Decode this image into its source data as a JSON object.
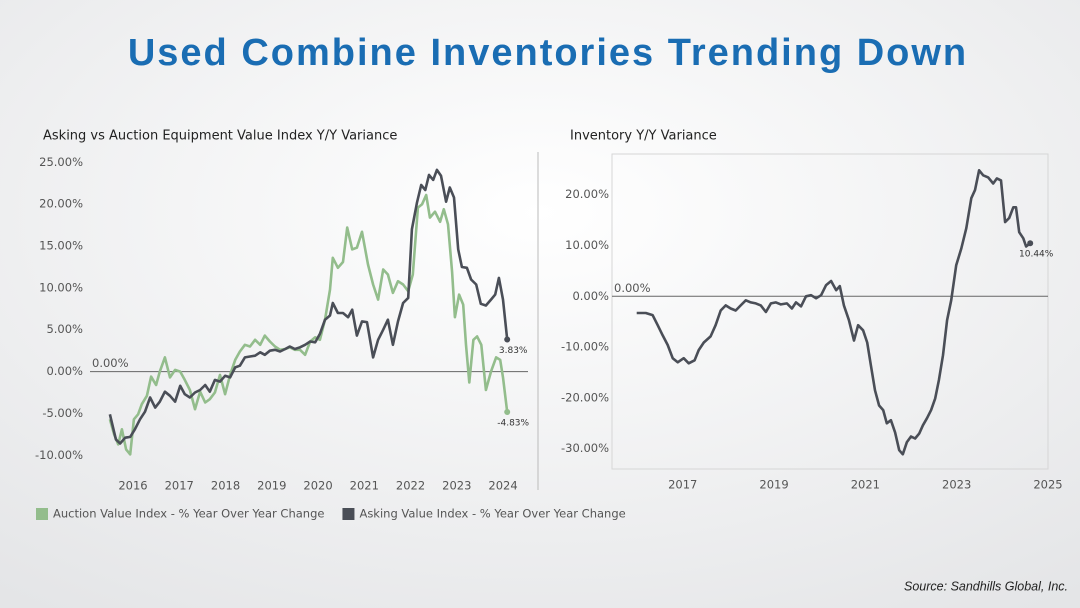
{
  "title": "Used Combine Inventories Trending Down",
  "source": "Source: Sandhills Global, Inc.",
  "chart_data": [
    {
      "type": "line",
      "title": "Asking vs Auction Equipment Value Index Y/Y Variance",
      "xlim": [
        2015.07,
        2024.54
      ],
      "xticks": [
        2016,
        2017,
        2018,
        2019,
        2020,
        2021,
        2022,
        2023,
        2024
      ],
      "ylim": [
        -12,
        26
      ],
      "yticks": [
        {
          "value": -10,
          "label": "-10.00%"
        },
        {
          "value": -5,
          "label": "-5.00%"
        },
        {
          "value": 0,
          "label": "0.00%"
        },
        {
          "value": 5,
          "label": "5.00%"
        },
        {
          "value": 10,
          "label": "10.00%"
        },
        {
          "value": 15,
          "label": "15.00%"
        },
        {
          "value": 20,
          "label": "20.00%"
        },
        {
          "value": 25,
          "label": "25.00%"
        }
      ],
      "hlines": [
        {
          "value": 0,
          "label": "0.00%"
        }
      ],
      "grid": false,
      "legend": "bottom",
      "series": [
        {
          "name": "Auction Value Index - % Year Over Year Change",
          "color": "#93bd8c",
          "x": [
            2015.5,
            2015.59,
            2015.68,
            2015.76,
            2015.85,
            2015.94,
            2016.02,
            2016.11,
            2016.19,
            2016.3,
            2016.39,
            2016.5,
            2016.58,
            2016.69,
            2016.8,
            2016.91,
            2017.02,
            2017.12,
            2017.23,
            2017.34,
            2017.45,
            2017.56,
            2017.66,
            2017.77,
            2017.88,
            2017.99,
            2018.1,
            2018.21,
            2018.31,
            2018.42,
            2018.53,
            2018.64,
            2018.75,
            2018.85,
            2018.96,
            2019.07,
            2019.18,
            2019.29,
            2019.39,
            2019.5,
            2019.61,
            2019.72,
            2019.83,
            2019.94,
            2020.04,
            2020.15,
            2020.26,
            2020.32,
            2020.43,
            2020.54,
            2020.63,
            2020.74,
            2020.84,
            2020.95,
            2021.08,
            2021.19,
            2021.3,
            2021.41,
            2021.51,
            2021.62,
            2021.73,
            2021.84,
            2021.95,
            2022.05,
            2022.16,
            2022.25,
            2022.34,
            2022.42,
            2022.53,
            2022.64,
            2022.72,
            2022.81,
            2022.9,
            2022.96,
            2023.05,
            2023.14,
            2023.2,
            2023.27,
            2023.36,
            2023.44,
            2023.53,
            2023.63,
            2023.74,
            2023.85,
            2023.94,
            2024.0,
            2024.09
          ],
          "values": [
            -5.7,
            -7.5,
            -8.7,
            -6.9,
            -9.3,
            -9.9,
            -5.7,
            -5.1,
            -3.9,
            -2.9,
            -0.6,
            -1.6,
            0,
            1.7,
            -0.7,
            0.2,
            0,
            -1.0,
            -2.2,
            -4.5,
            -2.4,
            -3.7,
            -3.3,
            -2.5,
            -0.4,
            -2.7,
            -0.4,
            1.4,
            2.4,
            3.2,
            3.0,
            3.8,
            3.2,
            4.3,
            3.6,
            3.0,
            2.6,
            2.7,
            2.9,
            2.6,
            2.6,
            2.0,
            3.6,
            4.1,
            3.8,
            6.2,
            9.8,
            13.6,
            12.4,
            13.1,
            17.2,
            14.6,
            14.8,
            16.7,
            12.8,
            10.4,
            8.6,
            12.2,
            11.6,
            9.4,
            10.8,
            10.4,
            9.6,
            11.6,
            19.6,
            20.0,
            21.1,
            18.4,
            19.1,
            17.9,
            19.4,
            17.6,
            11.9,
            6.5,
            9.2,
            8.0,
            3.2,
            -1.3,
            3.8,
            4.2,
            3.2,
            -2.2,
            0,
            1.7,
            1.4,
            -0.7,
            -4.83
          ],
          "value_labels": [
            null,
            null,
            null,
            null,
            null,
            null,
            null,
            null,
            null,
            null,
            null,
            null,
            null,
            null,
            null,
            null,
            null,
            null,
            null,
            null,
            null,
            null,
            null,
            null,
            null,
            null,
            null,
            null,
            null,
            null,
            null,
            null,
            null,
            null,
            null,
            null,
            null,
            null,
            null,
            null,
            null,
            null,
            null,
            null,
            null,
            null,
            null,
            null,
            null,
            null,
            null,
            null,
            null,
            null,
            null,
            null,
            null,
            null,
            null,
            null,
            null,
            null,
            null,
            null,
            null,
            null,
            null,
            null,
            null,
            null,
            null,
            null,
            null,
            null,
            null,
            null,
            null,
            null,
            null,
            null,
            null,
            null,
            null,
            null,
            null,
            null,
            "-4.83%"
          ]
        },
        {
          "name": "Asking Value Index - % Year Over Year Change",
          "color": "#4a4e57",
          "x": [
            2015.5,
            2015.63,
            2015.72,
            2015.83,
            2015.94,
            2016.04,
            2016.15,
            2016.26,
            2016.37,
            2016.48,
            2016.58,
            2016.69,
            2016.8,
            2016.91,
            2017.02,
            2017.12,
            2017.23,
            2017.34,
            2017.45,
            2017.56,
            2017.66,
            2017.77,
            2017.88,
            2017.99,
            2018.1,
            2018.21,
            2018.31,
            2018.42,
            2018.53,
            2018.64,
            2018.75,
            2018.85,
            2018.96,
            2019.07,
            2019.18,
            2019.29,
            2019.39,
            2019.5,
            2019.61,
            2019.72,
            2019.83,
            2019.94,
            2020.04,
            2020.15,
            2020.26,
            2020.32,
            2020.43,
            2020.54,
            2020.65,
            2020.74,
            2020.84,
            2020.95,
            2021.06,
            2021.19,
            2021.3,
            2021.41,
            2021.51,
            2021.62,
            2021.73,
            2021.84,
            2021.95,
            2022.03,
            2022.14,
            2022.23,
            2022.32,
            2022.4,
            2022.49,
            2022.57,
            2022.66,
            2022.77,
            2022.85,
            2022.94,
            2023.03,
            2023.11,
            2023.22,
            2023.31,
            2023.42,
            2023.52,
            2023.63,
            2023.74,
            2023.83,
            2023.91,
            2024.0,
            2024.09
          ],
          "values": [
            -5.1,
            -8.1,
            -8.6,
            -7.9,
            -7.8,
            -6.9,
            -5.7,
            -4.8,
            -3.1,
            -4.3,
            -3.6,
            -2.4,
            -2.9,
            -3.6,
            -1.7,
            -2.7,
            -3.1,
            -2.5,
            -2.2,
            -1.6,
            -2.4,
            -1.0,
            -1.2,
            -0.5,
            -0.7,
            0.5,
            0.7,
            1.7,
            1.8,
            1.9,
            2.3,
            2.0,
            2.5,
            2.6,
            2.4,
            2.7,
            3.0,
            2.7,
            2.9,
            3.2,
            3.6,
            3.5,
            4.5,
            6.2,
            6.7,
            8.2,
            7.0,
            7.0,
            6.5,
            7.4,
            4.3,
            6.0,
            5.9,
            1.7,
            3.8,
            5.0,
            6.2,
            3.2,
            6.0,
            8.2,
            8.8,
            17.0,
            20.2,
            22.3,
            21.7,
            23.5,
            22.9,
            24.1,
            23.4,
            20.3,
            22.0,
            20.8,
            14.6,
            12.5,
            12.4,
            11.0,
            10.4,
            8.1,
            7.9,
            8.6,
            9.2,
            11.2,
            8.6,
            3.83
          ],
          "value_labels": [
            null,
            null,
            null,
            null,
            null,
            null,
            null,
            null,
            null,
            null,
            null,
            null,
            null,
            null,
            null,
            null,
            null,
            null,
            null,
            null,
            null,
            null,
            null,
            null,
            null,
            null,
            null,
            null,
            null,
            null,
            null,
            null,
            null,
            null,
            null,
            null,
            null,
            null,
            null,
            null,
            null,
            null,
            null,
            null,
            null,
            null,
            null,
            null,
            null,
            null,
            null,
            null,
            null,
            null,
            null,
            null,
            null,
            null,
            null,
            null,
            null,
            null,
            null,
            null,
            null,
            null,
            null,
            null,
            null,
            null,
            null,
            null,
            null,
            null,
            null,
            null,
            null,
            null,
            null,
            null,
            null,
            null,
            null,
            "3.83%"
          ]
        }
      ]
    },
    {
      "type": "line",
      "title": "Inventory Y/Y Variance",
      "xlim": [
        2015.45,
        2025
      ],
      "xticks": [
        2017,
        2019,
        2021,
        2023,
        2025
      ],
      "ylim": [
        -34,
        28
      ],
      "yticks": [
        {
          "value": -30,
          "label": "-30.00%"
        },
        {
          "value": -20,
          "label": "-20.00%"
        },
        {
          "value": -10,
          "label": "-10.00%"
        },
        {
          "value": 0,
          "label": "0.00%"
        },
        {
          "value": 10,
          "label": "10.00%"
        },
        {
          "value": 20,
          "label": "20.00%"
        }
      ],
      "hlines": [
        {
          "value": 0,
          "label": "0.00%"
        }
      ],
      "grid": false,
      "frame": true,
      "series": [
        {
          "color": "#4a4e57",
          "x": [
            2015.99,
            2016.19,
            2016.34,
            2016.45,
            2016.56,
            2016.67,
            2016.78,
            2016.89,
            2017.02,
            2017.13,
            2017.26,
            2017.35,
            2017.46,
            2017.61,
            2017.72,
            2017.83,
            2017.94,
            2018.05,
            2018.16,
            2018.27,
            2018.38,
            2018.49,
            2018.6,
            2018.71,
            2018.82,
            2018.93,
            2019.04,
            2019.15,
            2019.28,
            2019.39,
            2019.48,
            2019.59,
            2019.7,
            2019.81,
            2019.92,
            2020.03,
            2020.14,
            2020.25,
            2020.36,
            2020.44,
            2020.53,
            2020.64,
            2020.75,
            2020.84,
            2020.95,
            2021.04,
            2021.12,
            2021.21,
            2021.3,
            2021.39,
            2021.47,
            2021.56,
            2021.65,
            2021.74,
            2021.82,
            2021.91,
            2022.0,
            2022.09,
            2022.18,
            2022.26,
            2022.35,
            2022.44,
            2022.53,
            2022.61,
            2022.7,
            2022.79,
            2022.88,
            2022.99,
            2023.1,
            2023.21,
            2023.32,
            2023.4,
            2023.49,
            2023.58,
            2023.69,
            2023.8,
            2023.88,
            2023.97,
            2024.06,
            2024.15,
            2024.24,
            2024.3,
            2024.37,
            2024.46,
            2024.52,
            2024.61
          ],
          "values": [
            -3.3,
            -3.3,
            -3.7,
            -5.7,
            -7.7,
            -9.6,
            -12.2,
            -13.0,
            -12.2,
            -13.2,
            -12.6,
            -10.6,
            -9.1,
            -7.9,
            -5.7,
            -2.8,
            -1.8,
            -2.4,
            -2.8,
            -1.8,
            -0.8,
            -1.2,
            -1.4,
            -1.8,
            -3.1,
            -1.4,
            -1.2,
            -1.6,
            -1.4,
            -2.4,
            -1.2,
            -2.0,
            0,
            0.2,
            -0.4,
            0.2,
            2.2,
            3.0,
            1.2,
            2.0,
            -1.8,
            -4.7,
            -8.7,
            -5.7,
            -6.7,
            -9.1,
            -13.6,
            -18.5,
            -21.5,
            -22.4,
            -25.0,
            -24.4,
            -26.8,
            -30.3,
            -31.1,
            -28.7,
            -27.6,
            -28.0,
            -27.0,
            -25.4,
            -24.0,
            -22.4,
            -20.1,
            -16.5,
            -11.6,
            -4.7,
            -0.8,
            6.1,
            9.4,
            13.4,
            19.3,
            20.9,
            24.8,
            23.8,
            23.4,
            22.2,
            23.2,
            22.8,
            14.6,
            15.4,
            17.5,
            17.5,
            12.6,
            11.4,
            9.8,
            10.44
          ],
          "value_labels": [
            null,
            null,
            null,
            null,
            null,
            null,
            null,
            null,
            null,
            null,
            null,
            null,
            null,
            null,
            null,
            null,
            null,
            null,
            null,
            null,
            null,
            null,
            null,
            null,
            null,
            null,
            null,
            null,
            null,
            null,
            null,
            null,
            null,
            null,
            null,
            null,
            null,
            null,
            null,
            null,
            null,
            null,
            null,
            null,
            null,
            null,
            null,
            null,
            null,
            null,
            null,
            null,
            null,
            null,
            null,
            null,
            null,
            null,
            null,
            null,
            null,
            null,
            null,
            null,
            null,
            null,
            null,
            null,
            null,
            null,
            null,
            null,
            null,
            null,
            null,
            null,
            null,
            null,
            null,
            null,
            null,
            null,
            null,
            null,
            null,
            "10.44%"
          ]
        }
      ]
    }
  ]
}
